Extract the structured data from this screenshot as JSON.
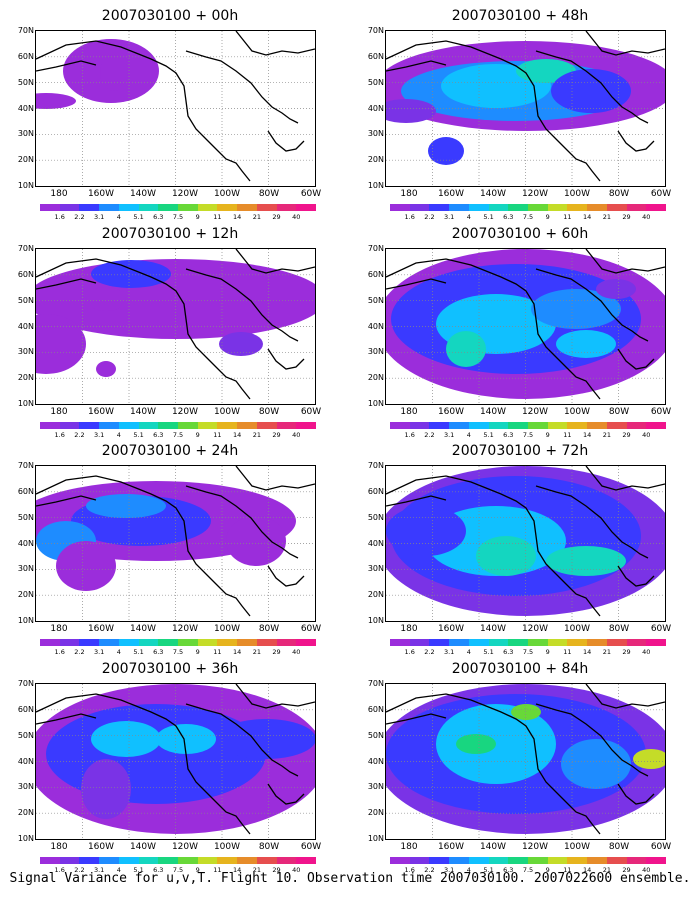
{
  "caption": "Signal Variance for u,v,T. Flight 10. Observation time 2007030100. 2007022600 ensemble.",
  "lat_labels": [
    "70N",
    "60N",
    "50N",
    "40N",
    "30N",
    "20N",
    "10N"
  ],
  "lon_labels": [
    "180",
    "160W",
    "140W",
    "120W",
    "100W",
    "80W",
    "60W"
  ],
  "colorbar": {
    "labels": [
      "1.6",
      "2.2",
      "3.1",
      "4",
      "5.1",
      "6.3",
      "7.5",
      "9",
      "11",
      "14",
      "21",
      "29",
      "40"
    ],
    "colors": [
      "#9b2ddb",
      "#7a33e6",
      "#3a3aff",
      "#1e8cff",
      "#10c0ff",
      "#14d6c0",
      "#18d680",
      "#68d838",
      "#c4dc28",
      "#e6b41e",
      "#e68c2a",
      "#e64e4e",
      "#e6287a",
      "#f0148c"
    ]
  },
  "panels": [
    {
      "title": "2007030100 + 00h"
    },
    {
      "title": "2007030100 + 48h"
    },
    {
      "title": "2007030100 + 12h"
    },
    {
      "title": "2007030100 + 60h"
    },
    {
      "title": "2007030100 + 24h"
    },
    {
      "title": "2007030100 + 72h"
    },
    {
      "title": "2007030100 + 36h"
    },
    {
      "title": "2007030100 + 84h"
    }
  ]
}
